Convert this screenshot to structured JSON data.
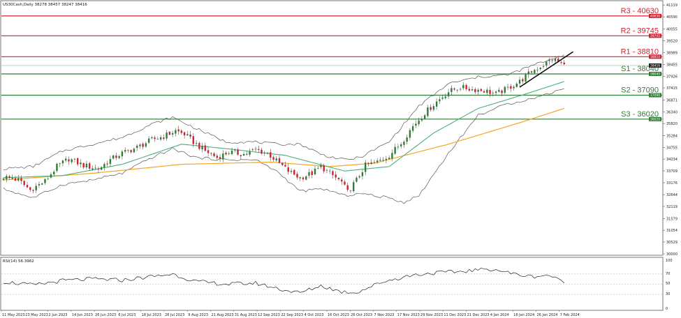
{
  "header": {
    "symbol_line": "US30Cash,Daily  38278 38457 38247 38416"
  },
  "rsi": {
    "title": "RSI(14) 56.3962",
    "scale": [
      "100",
      "70",
      "50",
      "30",
      "0"
    ],
    "dash_levels": [
      70,
      50,
      30
    ]
  },
  "levels": [
    {
      "name": "R3",
      "label": "R3 - 40630",
      "value": 40630,
      "tag": "40630",
      "color": "#d32030"
    },
    {
      "name": "R2",
      "label": "R2 - 39745",
      "value": 39745,
      "tag": "39745",
      "color": "#d32030"
    },
    {
      "name": "R1",
      "label": "R1 - 38810",
      "value": 38810,
      "tag": "38810",
      "color": "#d32030"
    },
    {
      "name": "S1",
      "label": "S1 - 38040",
      "value": 38040,
      "tag": "38040",
      "color": "#2e7d32"
    },
    {
      "name": "S2",
      "label": "S2 - 37090",
      "value": 37090,
      "tag": "37090",
      "color": "#2e7d32"
    },
    {
      "name": "S3",
      "label": "S3 - 36020",
      "value": 36020,
      "tag": "36020",
      "color": "#2e7d32"
    }
  ],
  "price_axis": {
    "ticks": [
      "41119",
      "40590",
      "40055",
      "39520",
      "38989",
      "38455",
      "37926",
      "37415",
      "36871",
      "36340",
      "35820",
      "35284",
      "34755",
      "34234",
      "33709",
      "33176",
      "32644",
      "32119",
      "31579",
      "31054",
      "30529",
      "30000"
    ],
    "current_tag": "38416",
    "current_value": 38416
  },
  "chart_data": {
    "type": "candlestick",
    "title": "",
    "xlabel": "",
    "ylabel": "",
    "ylim": [
      30000,
      41250
    ],
    "x_ticks": [
      "11 May 2023",
      "23 May 2023",
      "2 Jun 2023",
      "14 Jun 2023",
      "26 Jun 2023",
      "6 Jul 2023",
      "18 Jul 2023",
      "28 Jul 2023",
      "9 Aug 2023",
      "21 Aug 2023",
      "31 Aug 2023",
      "12 Sep 2023",
      "22 Sep 2023",
      "4 Oct 2023",
      "16 Oct 2023",
      "26 Oct 2023",
      "7 Nov 2023",
      "17 Nov 2023",
      "29 Nov 2023",
      "11 Dec 2023",
      "21 Dec 2023",
      "4 Jan 2024",
      "16 Jan 2024",
      "26 Jan 2024",
      "7 Feb 2024"
    ],
    "close_anchors": [
      [
        0,
        33450
      ],
      [
        5,
        33300
      ],
      [
        9,
        32850
      ],
      [
        14,
        33250
      ],
      [
        18,
        33900
      ],
      [
        22,
        34250
      ],
      [
        27,
        33950
      ],
      [
        32,
        33800
      ],
      [
        36,
        34200
      ],
      [
        40,
        34500
      ],
      [
        45,
        34750
      ],
      [
        50,
        35100
      ],
      [
        54,
        35250
      ],
      [
        58,
        35500
      ],
      [
        61,
        35350
      ],
      [
        64,
        35000
      ],
      [
        68,
        34600
      ],
      [
        72,
        34300
      ],
      [
        76,
        34550
      ],
      [
        81,
        34450
      ],
      [
        85,
        34650
      ],
      [
        89,
        34500
      ],
      [
        92,
        34150
      ],
      [
        96,
        33700
      ],
      [
        100,
        33400
      ],
      [
        104,
        33600
      ],
      [
        107,
        33900
      ],
      [
        111,
        33500
      ],
      [
        114,
        33200
      ],
      [
        116,
        32750
      ],
      [
        119,
        33300
      ],
      [
        122,
        33950
      ],
      [
        126,
        34100
      ],
      [
        130,
        34400
      ],
      [
        134,
        34950
      ],
      [
        138,
        35700
      ],
      [
        142,
        36300
      ],
      [
        146,
        36800
      ],
      [
        150,
        37250
      ],
      [
        154,
        37450
      ],
      [
        158,
        37350
      ],
      [
        162,
        37300
      ],
      [
        166,
        37150
      ],
      [
        170,
        37400
      ],
      [
        174,
        37700
      ],
      [
        178,
        38150
      ],
      [
        182,
        38450
      ],
      [
        185,
        38700
      ],
      [
        187,
        38580
      ],
      [
        189,
        38416
      ]
    ],
    "sma_fast_anchors": [
      [
        0,
        33400
      ],
      [
        20,
        33500
      ],
      [
        40,
        34000
      ],
      [
        60,
        34900
      ],
      [
        75,
        34700
      ],
      [
        95,
        34400
      ],
      [
        115,
        33700
      ],
      [
        130,
        33900
      ],
      [
        145,
        35400
      ],
      [
        160,
        36500
      ],
      [
        175,
        37100
      ],
      [
        189,
        37700
      ]
    ],
    "sma_slow_anchors": [
      [
        0,
        33300
      ],
      [
        30,
        33600
      ],
      [
        60,
        34000
      ],
      [
        90,
        34100
      ],
      [
        110,
        33900
      ],
      [
        125,
        34050
      ],
      [
        150,
        34900
      ],
      [
        175,
        35900
      ],
      [
        189,
        36500
      ]
    ],
    "bollinger_anchors": [
      [
        0,
        33800,
        32900
      ],
      [
        10,
        33900,
        32500
      ],
      [
        20,
        34600,
        33100
      ],
      [
        30,
        34900,
        33300
      ],
      [
        40,
        35200,
        33600
      ],
      [
        50,
        35800,
        34300
      ],
      [
        57,
        36100,
        34700
      ],
      [
        65,
        35600,
        34300
      ],
      [
        75,
        35000,
        34200
      ],
      [
        85,
        35000,
        34200
      ],
      [
        92,
        34900,
        33700
      ],
      [
        100,
        34900,
        32800
      ],
      [
        108,
        34400,
        32900
      ],
      [
        115,
        34200,
        32600
      ],
      [
        120,
        34300,
        32700
      ],
      [
        130,
        35000,
        32500
      ],
      [
        135,
        35800,
        32300
      ],
      [
        140,
        36600,
        32600
      ],
      [
        150,
        37600,
        34500
      ],
      [
        160,
        37900,
        36200
      ],
      [
        170,
        38000,
        36700
      ],
      [
        180,
        38500,
        37000
      ],
      [
        189,
        38900,
        37400
      ]
    ],
    "trendline": {
      "from": [
        174,
        37450
      ],
      "to": [
        192,
        39030
      ]
    },
    "rsi_anchors": [
      [
        0,
        55
      ],
      [
        10,
        48
      ],
      [
        20,
        57
      ],
      [
        30,
        60
      ],
      [
        40,
        58
      ],
      [
        50,
        65
      ],
      [
        57,
        70
      ],
      [
        65,
        55
      ],
      [
        75,
        50
      ],
      [
        85,
        52
      ],
      [
        95,
        38
      ],
      [
        100,
        33
      ],
      [
        107,
        47
      ],
      [
        114,
        35
      ],
      [
        119,
        34
      ],
      [
        128,
        55
      ],
      [
        138,
        68
      ],
      [
        145,
        72
      ],
      [
        152,
        74
      ],
      [
        160,
        78
      ],
      [
        165,
        80
      ],
      [
        172,
        70
      ],
      [
        178,
        65
      ],
      [
        184,
        68
      ],
      [
        187,
        58
      ],
      [
        189,
        56
      ]
    ],
    "series": [
      {
        "name": "US30Cash",
        "n_bars": 190
      },
      {
        "name": "RSI(14)",
        "last": 56.3962
      }
    ]
  },
  "colors": {
    "up": "#2e7d32",
    "down": "#d32030",
    "sma_fast": "#4caf7a",
    "sma_slow": "#f5a623",
    "band": "#555555",
    "trend": "#000000",
    "grid": "#cccccc"
  }
}
